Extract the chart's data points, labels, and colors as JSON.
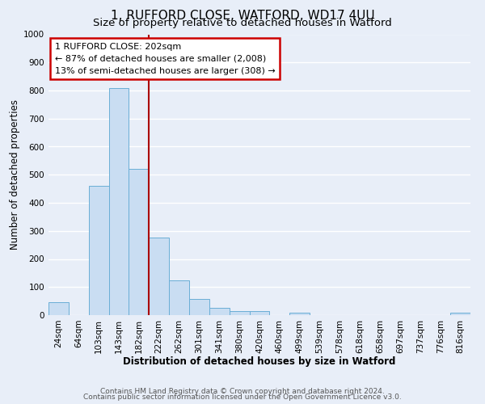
{
  "title": "1, RUFFORD CLOSE, WATFORD, WD17 4UU",
  "subtitle": "Size of property relative to detached houses in Watford",
  "xlabel": "Distribution of detached houses by size in Watford",
  "ylabel": "Number of detached properties",
  "bar_labels": [
    "24sqm",
    "64sqm",
    "103sqm",
    "143sqm",
    "182sqm",
    "222sqm",
    "262sqm",
    "301sqm",
    "341sqm",
    "380sqm",
    "420sqm",
    "460sqm",
    "499sqm",
    "539sqm",
    "578sqm",
    "618sqm",
    "658sqm",
    "697sqm",
    "737sqm",
    "776sqm",
    "816sqm"
  ],
  "bar_values": [
    47,
    0,
    460,
    810,
    520,
    275,
    125,
    58,
    25,
    13,
    13,
    0,
    8,
    0,
    0,
    0,
    0,
    0,
    0,
    0,
    8
  ],
  "bar_color": "#c9ddf2",
  "bar_edge_color": "#6aaed6",
  "property_line_label": "1 RUFFORD CLOSE: 202sqm",
  "annotation_line1": "← 87% of detached houses are smaller (2,008)",
  "annotation_line2": "13% of semi-detached houses are larger (308) →",
  "annotation_box_color": "#ffffff",
  "annotation_box_edge": "#cc0000",
  "vline_color": "#aa0000",
  "ylim": [
    0,
    1000
  ],
  "yticks": [
    0,
    100,
    200,
    300,
    400,
    500,
    600,
    700,
    800,
    900,
    1000
  ],
  "footer1": "Contains HM Land Registry data © Crown copyright and database right 2024.",
  "footer2": "Contains public sector information licensed under the Open Government Licence v3.0.",
  "bg_color": "#e8eef8",
  "plot_bg_color": "#e8eef8",
  "grid_color": "#ffffff",
  "title_fontsize": 11,
  "subtitle_fontsize": 9.5,
  "axis_label_fontsize": 8.5,
  "tick_fontsize": 7.5,
  "footer_fontsize": 6.5,
  "annot_fontsize": 8.0
}
